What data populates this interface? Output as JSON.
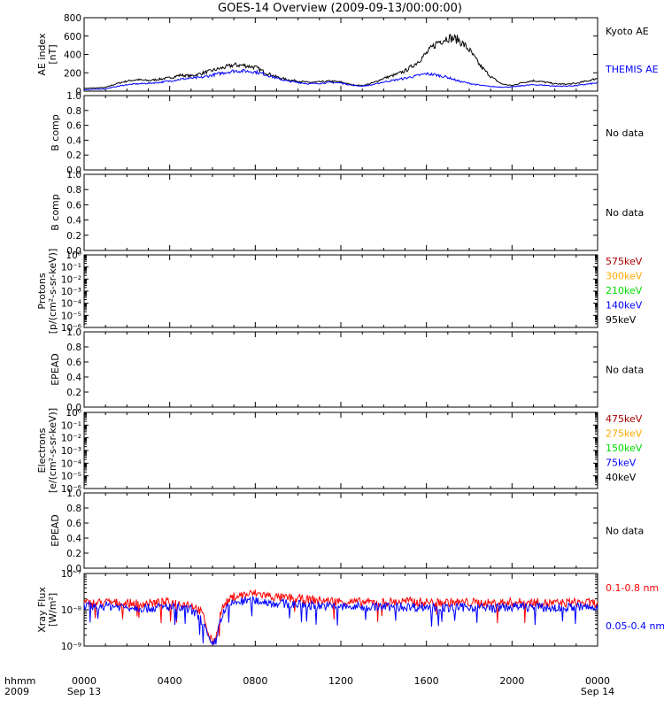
{
  "title": "GOES-14 Overview (2009-09-13/00:00:00)",
  "time_axis": {
    "row1_labels": [
      "0000",
      "0400",
      "0800",
      "1200",
      "1600",
      "2000",
      "0000"
    ],
    "row2_labels": [
      "Sep 13",
      "Sep 14"
    ],
    "format_label": "hhmm",
    "year_label": "2009"
  },
  "colors": {
    "black": "#000000",
    "blue": "#0000ff",
    "red": "#ff0000",
    "dark_red": "#aa0000",
    "orange": "#ffaa00",
    "green": "#00dd00"
  },
  "chart_data": [
    {
      "type": "line",
      "ylabel": [
        "AE index",
        "[nT]"
      ],
      "ylim": [
        0,
        800
      ],
      "yticks": [
        "0",
        "200",
        "400",
        "600",
        "800"
      ],
      "series": [
        {
          "name": "Kyoto AE",
          "color": "#000000",
          "x_hours": [
            0,
            1,
            1.5,
            2,
            2.5,
            3,
            3.5,
            4,
            4.5,
            5,
            5.5,
            6,
            6.5,
            7,
            7.5,
            8,
            8.5,
            9,
            9.5,
            10,
            10.5,
            11,
            11.5,
            12,
            12.5,
            13,
            13.5,
            14,
            14.5,
            15,
            15.5,
            16,
            16.5,
            17,
            17.5,
            18,
            18.5,
            19,
            19.5,
            20,
            20.5,
            21,
            21.5,
            22,
            22.5,
            23,
            23.5,
            24
          ],
          "values": [
            30,
            40,
            80,
            110,
            125,
            115,
            130,
            145,
            175,
            165,
            195,
            225,
            255,
            285,
            280,
            260,
            200,
            155,
            125,
            110,
            95,
            100,
            110,
            100,
            70,
            60,
            90,
            140,
            175,
            220,
            300,
            410,
            530,
            585,
            560,
            450,
            280,
            160,
            80,
            60,
            95,
            115,
            100,
            80,
            75,
            85,
            110,
            140
          ]
        },
        {
          "name": "THEMIS AE",
          "color": "#0000ff",
          "x_hours": [
            0,
            1,
            1.5,
            2,
            2.5,
            3,
            3.5,
            4,
            4.5,
            5,
            5.5,
            6,
            6.5,
            7,
            7.5,
            8,
            8.5,
            9,
            9.5,
            10,
            10.5,
            11,
            11.5,
            12,
            12.5,
            13,
            13.5,
            14,
            14.5,
            15,
            15.5,
            16,
            16.5,
            17,
            17.5,
            18,
            18.5,
            19,
            19.5,
            20,
            20.5,
            21,
            21.5,
            22,
            22.5,
            23,
            23.5,
            24
          ],
          "values": [
            15,
            25,
            50,
            70,
            80,
            85,
            95,
            110,
            130,
            140,
            150,
            175,
            200,
            220,
            220,
            210,
            180,
            140,
            110,
            95,
            80,
            85,
            95,
            90,
            65,
            55,
            70,
            100,
            120,
            140,
            165,
            190,
            175,
            150,
            110,
            85,
            65,
            50,
            45,
            45,
            60,
            70,
            65,
            55,
            55,
            60,
            75,
            90
          ]
        }
      ]
    },
    {
      "type": "line",
      "ylabel": [
        "B comp"
      ],
      "ylim": [
        0,
        1
      ],
      "yticks": [
        "0.0",
        "0.2",
        "0.4",
        "0.6",
        "0.8",
        "1.0"
      ],
      "note": "No data",
      "series": []
    },
    {
      "type": "line",
      "ylabel": [
        "B comp"
      ],
      "ylim": [
        0,
        1
      ],
      "yticks": [
        "0.0",
        "0.2",
        "0.4",
        "0.6",
        "0.8",
        "1.0"
      ],
      "note": "No data",
      "series": []
    },
    {
      "type": "line",
      "log": true,
      "ylabel": [
        "Protons",
        "[p/(cm²-s-sr-keV)]"
      ],
      "yticks": [
        "10⁻⁶",
        "10⁻⁵",
        "10⁻⁴",
        "10⁻³",
        "10⁻²",
        "10⁻¹",
        "10⁰"
      ],
      "legend": [
        {
          "label": "575keV",
          "color": "#aa0000"
        },
        {
          "label": "300keV",
          "color": "#ffaa00"
        },
        {
          "label": "210keV",
          "color": "#00dd00"
        },
        {
          "label": "140keV",
          "color": "#0000ff"
        },
        {
          "label": "95keV",
          "color": "#000000"
        }
      ],
      "series": []
    },
    {
      "type": "line",
      "ylabel": [
        "EPEAD"
      ],
      "ylim": [
        0,
        1
      ],
      "yticks": [
        "0.0",
        "0.2",
        "0.4",
        "0.6",
        "0.8",
        "1.0"
      ],
      "note": "No data",
      "series": []
    },
    {
      "type": "line",
      "log": true,
      "ylabel": [
        "Electrons",
        "[e/(cm²-s-sr-keV)]"
      ],
      "yticks": [
        "10⁻⁶",
        "10⁻⁵",
        "10⁻⁴",
        "10⁻³",
        "10⁻²",
        "10⁻¹",
        "10⁰"
      ],
      "legend": [
        {
          "label": "475keV",
          "color": "#aa0000"
        },
        {
          "label": "275keV",
          "color": "#ffaa00"
        },
        {
          "label": "150keV",
          "color": "#00dd00"
        },
        {
          "label": "75keV",
          "color": "#0000ff"
        },
        {
          "label": "40keV",
          "color": "#000000"
        }
      ],
      "series": []
    },
    {
      "type": "line",
      "ylabel": [
        "EPEAD"
      ],
      "ylim": [
        0,
        1
      ],
      "yticks": [
        "0.0",
        "0.2",
        "0.4",
        "0.6",
        "0.8",
        "1.0"
      ],
      "note": "No data",
      "series": []
    },
    {
      "type": "line",
      "log": true,
      "ylabel": [
        "Xray Flux",
        "[W/m²]"
      ],
      "ylim": [
        1e-09,
        1e-07
      ],
      "yticks": [
        "10⁻⁹",
        "10⁻⁸",
        "10⁻⁷"
      ],
      "series": [
        {
          "name": "0.1-0.8 nm",
          "color": "#ff0000",
          "x_hours": [
            0,
            1,
            2,
            3,
            4,
            5,
            5.5,
            5.8,
            6,
            6.2,
            6.5,
            7,
            7.5,
            8,
            9,
            10,
            11,
            12,
            13,
            14,
            15,
            16,
            17,
            18,
            19,
            20,
            21,
            22,
            23,
            24
          ],
          "values": [
            1.5e-08,
            1.6e-08,
            1.5e-08,
            1.5e-08,
            1.6e-08,
            1.4e-08,
            8e-09,
            2e-09,
            1.2e-09,
            2e-09,
            1.2e-08,
            2.3e-08,
            2.6e-08,
            2.8e-08,
            2.2e-08,
            2e-08,
            1.8e-08,
            1.7e-08,
            1.6e-08,
            1.6e-08,
            1.7e-08,
            1.6e-08,
            1.6e-08,
            1.6e-08,
            1.5e-08,
            1.6e-08,
            1.6e-08,
            1.5e-08,
            1.6e-08,
            1.5e-08
          ]
        },
        {
          "name": "0.05-0.4 nm",
          "color": "#0000ff",
          "x_hours": [
            0,
            1,
            2,
            3,
            4,
            5,
            5.5,
            5.8,
            6,
            6.2,
            6.5,
            7,
            7.5,
            8,
            9,
            10,
            11,
            12,
            13,
            14,
            15,
            16,
            17,
            18,
            19,
            20,
            21,
            22,
            23,
            24
          ],
          "values": [
            1.2e-08,
            1.3e-08,
            1.2e-08,
            1.1e-08,
            1.2e-08,
            1e-08,
            5e-09,
            1.5e-09,
            1e-09,
            1.5e-09,
            8e-09,
            1.6e-08,
            1.7e-08,
            1.8e-08,
            1.5e-08,
            1.4e-08,
            1.3e-08,
            1.2e-08,
            1.2e-08,
            1.2e-08,
            1.2e-08,
            1.2e-08,
            1.1e-08,
            1.2e-08,
            1.1e-08,
            1.2e-08,
            1.2e-08,
            1.1e-08,
            1.2e-08,
            1.1e-08
          ]
        }
      ]
    }
  ]
}
